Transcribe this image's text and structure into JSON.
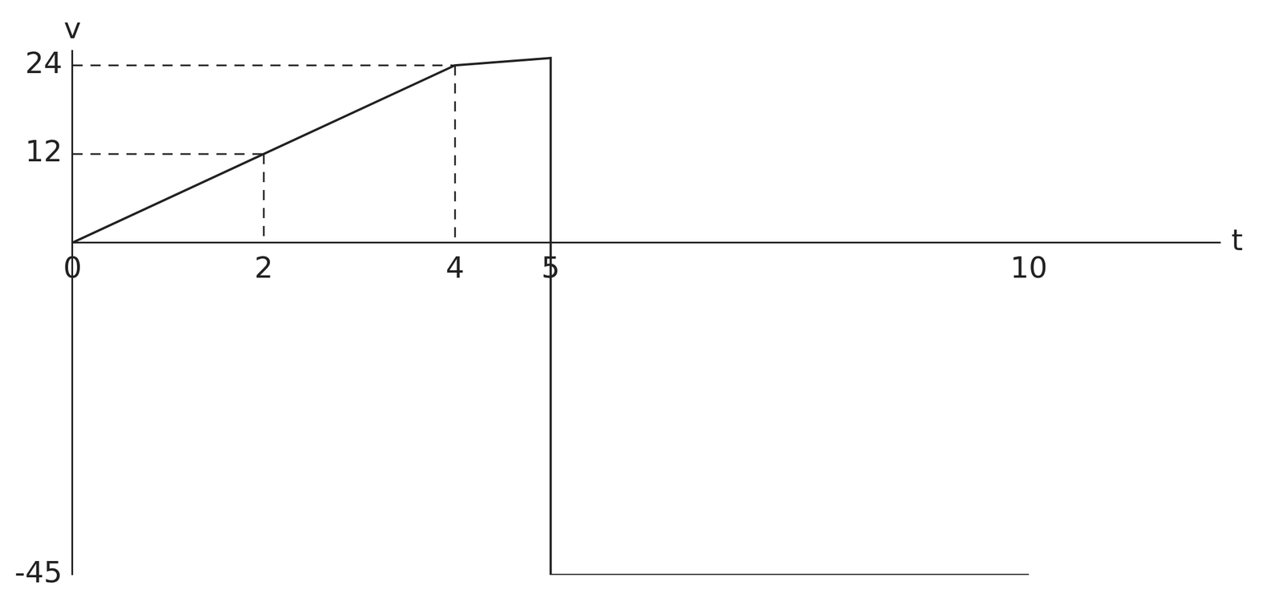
{
  "chart_data": {
    "type": "line",
    "x_label": "t",
    "y_label": "v",
    "x": [
      0,
      2,
      4,
      5,
      5,
      10
    ],
    "values": [
      0,
      12,
      24,
      25,
      -45,
      -45
    ],
    "color": "#222222",
    "marker": "none",
    "line_style": "solid",
    "xlim": [
      0,
      12
    ],
    "xticks": [
      0,
      2,
      4,
      5,
      10
    ],
    "ylim": [
      -45,
      26
    ],
    "yticks": [
      -45,
      12,
      24
    ],
    "grid": false
  }
}
